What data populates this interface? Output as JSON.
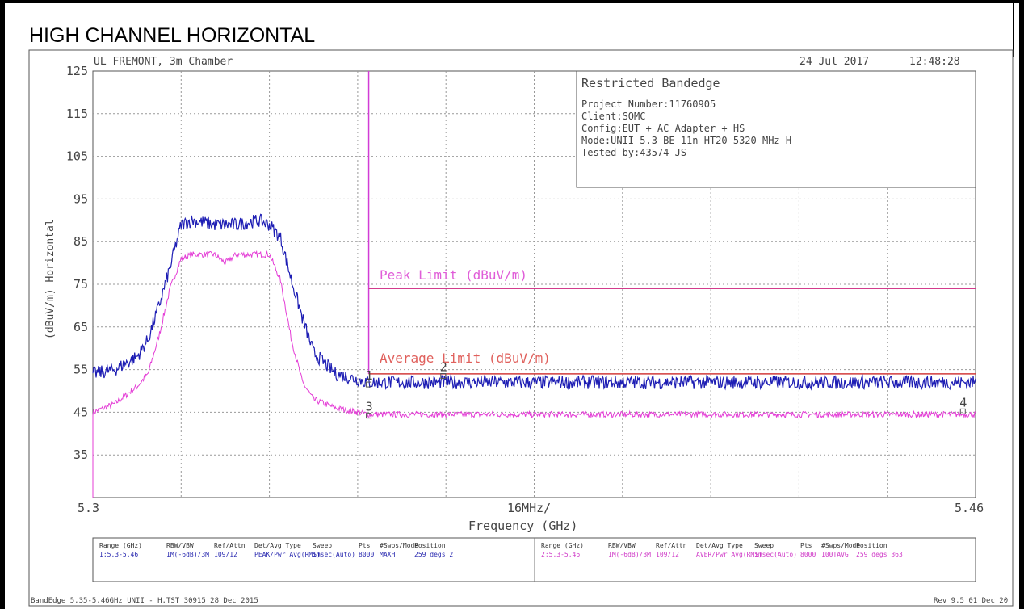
{
  "page_title": "HIGH CHANNEL HORIZONTAL",
  "header": {
    "lab": "UL FREMONT, 3m Chamber",
    "date": "24 Jul 2017",
    "time": "12:48:28"
  },
  "info_box": {
    "title": "Restricted Bandedge",
    "lines": [
      "Project Number:11760905",
      "Client:SOMC",
      "Config:EUT + AC Adapter + HS",
      "Mode:UNII 5.3 BE 11n HT20 5320 MHz H",
      "Tested by:43574 JS"
    ]
  },
  "footer": {
    "left": "BandEdge 5.35-5.46GHz UNII - H.TST 30915 28 Dec 2015",
    "right": "Rev 9.5 01 Dec 20"
  },
  "settings_table": {
    "headers": [
      "Range (GHz)",
      "RBW/VBW",
      "Ref/Attn",
      "Det/Avg Type",
      "Sweep",
      "Pts",
      "#Swps/Mode",
      "Position"
    ],
    "rows": [
      [
        "1:5.3-5.46",
        "1M(-6dB)/3M",
        "109/12",
        "PEAK/Pwr Avg(RMS)",
        "1msec(Auto)",
        "8000",
        "MAXH",
        "259 degs 2"
      ],
      [
        "2:5.3-5.46",
        "1M(-6dB)/3M",
        "109/12",
        "AVER/Pwr Avg(RMS)",
        "1msec(Auto)",
        "8000",
        "100TAVG",
        "259 degs 363"
      ]
    ]
  },
  "colors": {
    "peak_trace": "#1e1eb4",
    "avg_trace": "#e43cd6",
    "limit_line": "#d23c8c",
    "avg_limit_line": "#d23c3c",
    "grid": "#999999",
    "table_text": "#2a2ab0"
  },
  "chart_data": {
    "type": "line",
    "xlabel": "Frequency (GHz)",
    "ylabel": "(dBuV/m) Horizontal",
    "x_start_label": "5.3",
    "x_center_label": "16MHz/",
    "x_end_label": "5.46",
    "xlim": [
      5.3,
      5.46
    ],
    "ylim": [
      25,
      125
    ],
    "y_ticks": [
      125,
      115,
      105,
      95,
      85,
      75,
      65,
      55,
      45,
      35
    ],
    "grid": true,
    "restricted_band_start": 5.35,
    "limits": [
      {
        "name": "Peak Limit (dBuV/m)",
        "value": 74,
        "from": 5.35,
        "to": 5.46
      },
      {
        "name": "Average Limit (dBuV/m)",
        "value": 54,
        "from": 5.35,
        "to": 5.46
      }
    ],
    "series": [
      {
        "role": "peak",
        "x": [
          5.3,
          5.304,
          5.308,
          5.31,
          5.312,
          5.314,
          5.316,
          5.318,
          5.322,
          5.326,
          5.33,
          5.332,
          5.334,
          5.336,
          5.338,
          5.34,
          5.344,
          5.35,
          5.36,
          5.38,
          5.4,
          5.42,
          5.44,
          5.46
        ],
        "y": [
          54,
          55,
          58,
          62,
          70,
          79,
          89,
          90,
          89,
          89,
          90,
          89,
          86,
          76,
          67,
          59,
          54,
          52,
          52,
          52,
          52,
          52,
          52,
          52
        ]
      },
      {
        "role": "average",
        "x": [
          5.3,
          5.304,
          5.308,
          5.31,
          5.312,
          5.314,
          5.316,
          5.318,
          5.322,
          5.324,
          5.326,
          5.33,
          5.332,
          5.334,
          5.336,
          5.338,
          5.34,
          5.344,
          5.35,
          5.36,
          5.38,
          5.4,
          5.42,
          5.44,
          5.46
        ],
        "y": [
          45,
          47,
          51,
          54,
          63,
          74,
          81,
          82,
          82,
          80,
          82,
          82,
          82,
          76,
          62,
          52,
          48,
          46,
          44.5,
          44.5,
          44.5,
          44.5,
          44.5,
          44.5,
          44.5
        ]
      }
    ],
    "markers": [
      {
        "label": "1",
        "x": 5.35,
        "y": 51.5
      },
      {
        "label": "2",
        "x": 5.3635,
        "y": 53.5
      },
      {
        "label": "3",
        "x": 5.35,
        "y": 44.2
      },
      {
        "label": "4",
        "x": 5.4577,
        "y": 45.2
      }
    ]
  }
}
